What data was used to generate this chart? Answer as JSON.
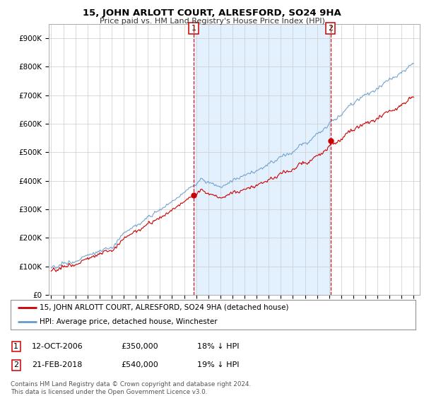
{
  "title": "15, JOHN ARLOTT COURT, ALRESFORD, SO24 9HA",
  "subtitle": "Price paid vs. HM Land Registry's House Price Index (HPI)",
  "ylabel_ticks": [
    "£0",
    "£100K",
    "£200K",
    "£300K",
    "£400K",
    "£500K",
    "£600K",
    "£700K",
    "£800K",
    "£900K"
  ],
  "ytick_values": [
    0,
    100000,
    200000,
    300000,
    400000,
    500000,
    600000,
    700000,
    800000,
    900000
  ],
  "ylim": [
    0,
    950000
  ],
  "xlim_start": 1994.8,
  "xlim_end": 2025.5,
  "red_line_color": "#cc0000",
  "blue_line_color": "#6699cc",
  "fill_color": "#ddeeff",
  "sale1_date": 2006.79,
  "sale1_price": 350000,
  "sale2_date": 2018.12,
  "sale2_price": 540000,
  "legend_line1": "15, JOHN ARLOTT COURT, ALRESFORD, SO24 9HA (detached house)",
  "legend_line2": "HPI: Average price, detached house, Winchester",
  "table_row1": [
    "1",
    "12-OCT-2006",
    "£350,000",
    "18% ↓ HPI"
  ],
  "table_row2": [
    "2",
    "21-FEB-2018",
    "£540,000",
    "19% ↓ HPI"
  ],
  "footer": "Contains HM Land Registry data © Crown copyright and database right 2024.\nThis data is licensed under the Open Government Licence v3.0.",
  "background_color": "#ffffff",
  "grid_color": "#cccccc",
  "title_fontsize": 9.5,
  "subtitle_fontsize": 8.0
}
